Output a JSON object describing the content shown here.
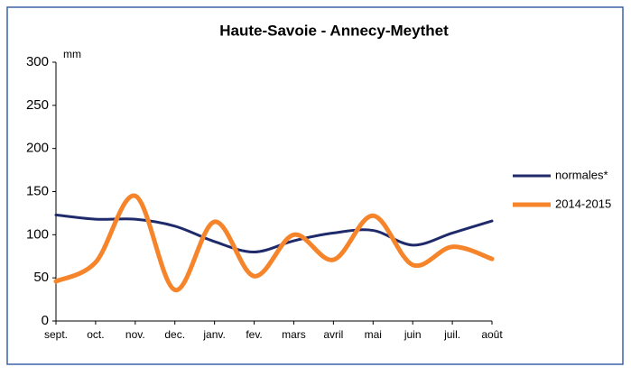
{
  "chart_data": {
    "type": "line",
    "title": "Haute-Savoie - Annecy-Meythet",
    "y_label": "mm",
    "categories": [
      "sept.",
      "oct.",
      "nov.",
      "dec.",
      "janv.",
      "fev.",
      "mars",
      "avril",
      "mai",
      "juin",
      "juil.",
      "août"
    ],
    "series": [
      {
        "name": "normales*",
        "color": "#1f2a6b",
        "values": [
          123,
          118,
          118,
          110,
          92,
          80,
          93,
          102,
          105,
          88,
          102,
          116
        ]
      },
      {
        "name": "2014-2015",
        "color": "#f5842a",
        "values": [
          46,
          68,
          145,
          36,
          115,
          52,
          100,
          71,
          122,
          65,
          86,
          72
        ]
      }
    ],
    "ylim": [
      0,
      300
    ],
    "yticks": [
      0,
      50,
      100,
      150,
      200,
      250,
      300
    ],
    "legend": "right"
  }
}
